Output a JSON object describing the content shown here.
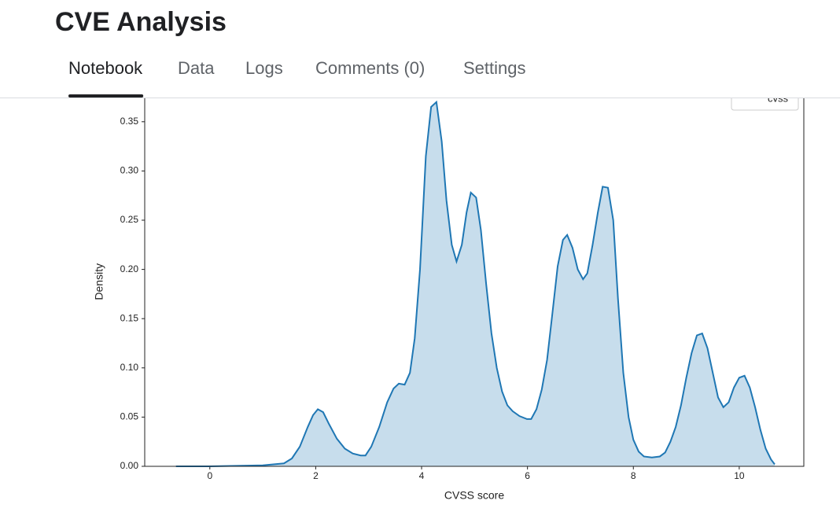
{
  "header": {
    "title": "CVE Analysis",
    "tabs": [
      "Notebook",
      "Data",
      "Logs",
      "Comments (0)",
      "Settings"
    ],
    "active_tab": 0
  },
  "chart_data": {
    "type": "kde",
    "xlabel": "CVSS score",
    "ylabel": "Density",
    "xlim": [
      -1.23,
      11.22
    ],
    "ylim": [
      0,
      0.375
    ],
    "xticks": [
      0,
      2,
      4,
      6,
      8,
      10
    ],
    "yticks": [
      {
        "value": 0,
        "label": "0.00"
      },
      {
        "value": 0.05,
        "label": "0.05"
      },
      {
        "value": 0.1,
        "label": "0.10"
      },
      {
        "value": 0.15,
        "label": "0.15"
      },
      {
        "value": 0.2,
        "label": "0.20"
      },
      {
        "value": 0.25,
        "label": "0.25"
      },
      {
        "value": 0.3,
        "label": "0.30"
      },
      {
        "value": 0.35,
        "label": "0.35"
      }
    ],
    "grid": false,
    "legend": "upper right",
    "x": [
      -0.64,
      0,
      1,
      1.4,
      1.55,
      1.7,
      1.85,
      1.95,
      2.04,
      2.14,
      2.25,
      2.4,
      2.55,
      2.7,
      2.85,
      2.94,
      3.05,
      3.2,
      3.35,
      3.47,
      3.57,
      3.68,
      3.78,
      3.87,
      3.97,
      4.08,
      4.18,
      4.28,
      4.38,
      4.47,
      4.57,
      4.66,
      4.76,
      4.85,
      4.93,
      5.03,
      5.12,
      5.22,
      5.32,
      5.42,
      5.52,
      5.62,
      5.72,
      5.85,
      5.99,
      6.07,
      6.17,
      6.27,
      6.37,
      6.47,
      6.57,
      6.67,
      6.75,
      6.85,
      6.95,
      7.05,
      7.13,
      7.23,
      7.33,
      7.42,
      7.52,
      7.62,
      7.71,
      7.81,
      7.91,
      8.0,
      8.1,
      8.2,
      8.35,
      8.5,
      8.6,
      8.7,
      8.8,
      8.9,
      9.0,
      9.1,
      9.2,
      9.3,
      9.4,
      9.5,
      9.6,
      9.7,
      9.8,
      9.9,
      10.0,
      10.1,
      10.2,
      10.3,
      10.4,
      10.5,
      10.6,
      10.67
    ],
    "series": [
      {
        "name": "cvss",
        "color": "#1f77b4",
        "values": [
          0,
          0,
          0.001,
          0.003,
          0.008,
          0.02,
          0.04,
          0.052,
          0.058,
          0.055,
          0.043,
          0.028,
          0.018,
          0.013,
          0.011,
          0.011,
          0.02,
          0.04,
          0.065,
          0.079,
          0.084,
          0.083,
          0.095,
          0.13,
          0.2,
          0.315,
          0.365,
          0.37,
          0.33,
          0.27,
          0.225,
          0.208,
          0.225,
          0.258,
          0.278,
          0.273,
          0.24,
          0.185,
          0.135,
          0.1,
          0.076,
          0.062,
          0.056,
          0.051,
          0.048,
          0.048,
          0.058,
          0.078,
          0.108,
          0.155,
          0.203,
          0.23,
          0.235,
          0.222,
          0.2,
          0.19,
          0.196,
          0.225,
          0.258,
          0.284,
          0.283,
          0.25,
          0.17,
          0.095,
          0.05,
          0.027,
          0.015,
          0.01,
          0.009,
          0.01,
          0.014,
          0.025,
          0.04,
          0.062,
          0.09,
          0.115,
          0.133,
          0.135,
          0.12,
          0.095,
          0.07,
          0.06,
          0.065,
          0.08,
          0.09,
          0.092,
          0.08,
          0.06,
          0.037,
          0.018,
          0.007,
          0.002
        ]
      }
    ]
  }
}
